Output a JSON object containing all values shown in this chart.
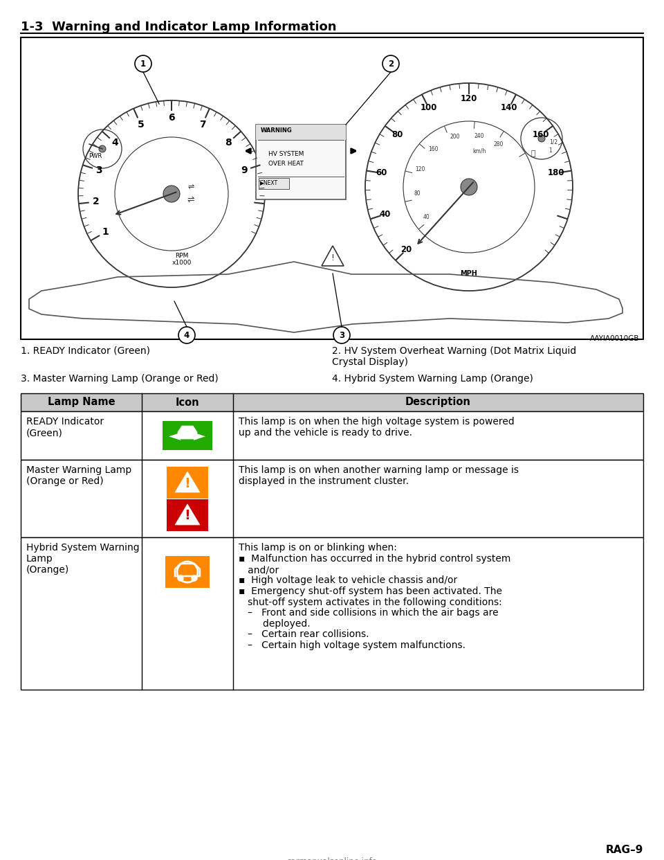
{
  "page_title": "1-3  Warning and Indicator Lamp Information",
  "figure_label": "AAYIA0010GB",
  "table_header": [
    "Lamp Name",
    "Icon",
    "Description"
  ],
  "row1_name": "READY Indicator\n(Green)",
  "row1_desc": "This lamp is on when the high voltage system is powered\nup and the vehicle is ready to drive.",
  "row1_icon_color": "#22aa00",
  "row2_name": "Master Warning Lamp\n(Orange or Red)",
  "row2_desc": "This lamp is on when another warning lamp or message is\ndisplayed in the instrument cluster.",
  "row2_icon_color_orange": "#ff8800",
  "row2_icon_color_red": "#cc0000",
  "row3_name": "Hybrid System Warning\nLamp\n(Orange)",
  "row3_icon_color": "#ff8800",
  "row3_desc_line1": "This lamp is on or blinking when:",
  "row3_desc_bullets": [
    "▪  Malfunction has occurred in the hybrid control system\n   and/or",
    "▪  High voltage leak to vehicle chassis and/or",
    "▪  Emergency shut-off system has been activated. The\n   shut-off system activates in the following conditions:",
    "   –   Front and side collisions in which the air bags are\n        deployed.",
    "   –   Certain rear collisions.",
    "   –   Certain high voltage system malfunctions."
  ],
  "legend_1": "1. READY Indicator (Green)",
  "legend_2a": "2. HV System Overheat Warning (Dot Matrix Liquid",
  "legend_2b": "Crystal Display)",
  "legend_3": "3. Master Warning Lamp (Orange or Red)",
  "legend_4": "4. Hybrid System Warning Lamp (Orange)",
  "footer": "RAG–9",
  "watermark": "carmanualsonline.info",
  "bg": "#ffffff",
  "fg": "#000000",
  "header_bg": "#c8c8c8",
  "box_color": "#000000",
  "gauge_color": "#333333",
  "title_fontsize": 13,
  "body_fontsize": 10,
  "table_fontsize": 10
}
